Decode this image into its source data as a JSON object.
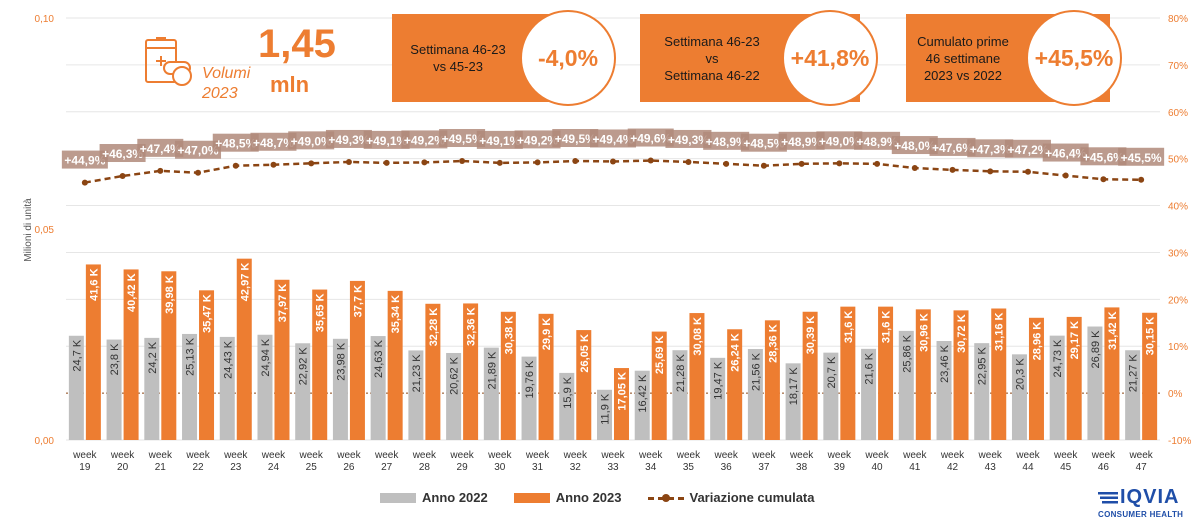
{
  "chart_data": {
    "type": "bar",
    "categories": [
      "week 19",
      "week 20",
      "week 21",
      "week 22",
      "week 23",
      "week 24",
      "week 25",
      "week 26",
      "week 27",
      "week 28",
      "week 29",
      "week 30",
      "week 31",
      "week 32",
      "week 33",
      "week 34",
      "week 35",
      "week 36",
      "week 37",
      "week 38",
      "week 39",
      "week 40",
      "week 41",
      "week 42",
      "week 43",
      "week 44",
      "week 45",
      "week 46",
      "week 47"
    ],
    "series": [
      {
        "name": "Anno 2022",
        "values": [
          24.7,
          23.8,
          24.2,
          25.13,
          24.43,
          24.94,
          22.92,
          23.98,
          24.63,
          21.23,
          20.62,
          21.89,
          19.76,
          15.9,
          11.9,
          16.42,
          21.28,
          19.47,
          21.56,
          18.17,
          20.7,
          21.6,
          25.86,
          23.46,
          22.95,
          20.3,
          24.73,
          26.89,
          21.27
        ],
        "labels": [
          "24,7 K",
          "23,8 K",
          "24,2 K",
          "25,13 K",
          "24,43 K",
          "24,94 K",
          "22,92 K",
          "23,98 K",
          "24,63 K",
          "21,23 K",
          "20,62 K",
          "21,89 K",
          "19,76 K",
          "15,9 K",
          "11,9 K",
          "16,42 K",
          "21,28 K",
          "19,47 K",
          "21,56 K",
          "18,17 K",
          "20,7 K",
          "21,6 K",
          "25,86 K",
          "23,46 K",
          "22,95 K",
          "20,3 K",
          "24,73 K",
          "26,89 K",
          "21,27 K"
        ]
      },
      {
        "name": "Anno 2023",
        "values": [
          41.6,
          40.42,
          39.98,
          35.47,
          42.97,
          37.97,
          35.65,
          37.7,
          35.34,
          32.28,
          32.36,
          30.38,
          29.9,
          26.05,
          17.05,
          25.69,
          30.08,
          26.24,
          28.36,
          30.39,
          31.6,
          31.6,
          30.96,
          30.72,
          31.16,
          28.96,
          29.17,
          31.42,
          30.15
        ],
        "labels": [
          "41,6 K",
          "40,42 K",
          "39,98 K",
          "35,47 K",
          "42,97 K",
          "37,97 K",
          "35,65 K",
          "37,7 K",
          "35,34 K",
          "32,28 K",
          "32,36 K",
          "30,38 K",
          "29,9 K",
          "26,05 K",
          "17,05 K",
          "25,69 K",
          "30,08 K",
          "26,24 K",
          "28,36 K",
          "30,39 K",
          "31,6 K",
          "31,6 K",
          "30,96 K",
          "30,72 K",
          "31,16 K",
          "28,96 K",
          "29,17 K",
          "31,42 K",
          "30,15 K"
        ]
      },
      {
        "name": "Variazione cumulata",
        "axis": "right",
        "values": [
          44.9,
          46.3,
          47.4,
          47.0,
          48.5,
          48.7,
          49.0,
          49.3,
          49.1,
          49.2,
          49.5,
          49.1,
          49.2,
          49.5,
          49.4,
          49.6,
          49.3,
          48.9,
          48.5,
          48.9,
          49.0,
          48.9,
          48.0,
          47.6,
          47.3,
          47.2,
          46.4,
          45.6,
          45.5
        ],
        "labels": [
          "+44,9%",
          "+46,3%",
          "+47,4%",
          "+47,0%",
          "+48,5%",
          "+48,7%",
          "+49,0%",
          "+49,3%",
          "+49,1%",
          "+49,2%",
          "+49,5%",
          "+49,1%",
          "+49,2%",
          "+49,5%",
          "+49,4%",
          "+49,6%",
          "+49,3%",
          "+48,9%",
          "+48,5%",
          "+48,9%",
          "+49,0%",
          "+48,9%",
          "+48,0%",
          "+47,6%",
          "+47,3%",
          "+47,2%",
          "+46,4%",
          "+45,6%",
          "+45,5%"
        ]
      }
    ],
    "ylabel": "Milioni di unità",
    "ylim": [
      0,
      0.1
    ],
    "y_ticks": [
      "0,00",
      "0,05",
      "0,10"
    ],
    "y2lim": [
      -10,
      80
    ],
    "y2_ticks": [
      "-10%",
      "0%",
      "10%",
      "20%",
      "30%",
      "40%",
      "50%",
      "60%",
      "70%",
      "80%"
    ],
    "grid": true,
    "legend_position": "bottom"
  },
  "volume": {
    "label": "Volumi\n2023",
    "value": "1,45",
    "unit": "mln"
  },
  "kpis": [
    {
      "label": "Settimana 46-23\nvs 45-23",
      "value": "-4,0%"
    },
    {
      "label": "Settimana 46-23\nvs\nSettimana 46-22",
      "value": "+41,8%"
    },
    {
      "label": "Cumulato prime\n46 settimane\n2023 vs 2022",
      "value": "+45,5%"
    }
  ],
  "colors": {
    "series_2022": "#BFBFBF",
    "series_2023": "#ED7D31",
    "line": "#8B4513",
    "axis_text": "#ED7D31"
  },
  "logo": {
    "name": "IQVIA",
    "subtitle": "CONSUMER HEALTH"
  }
}
